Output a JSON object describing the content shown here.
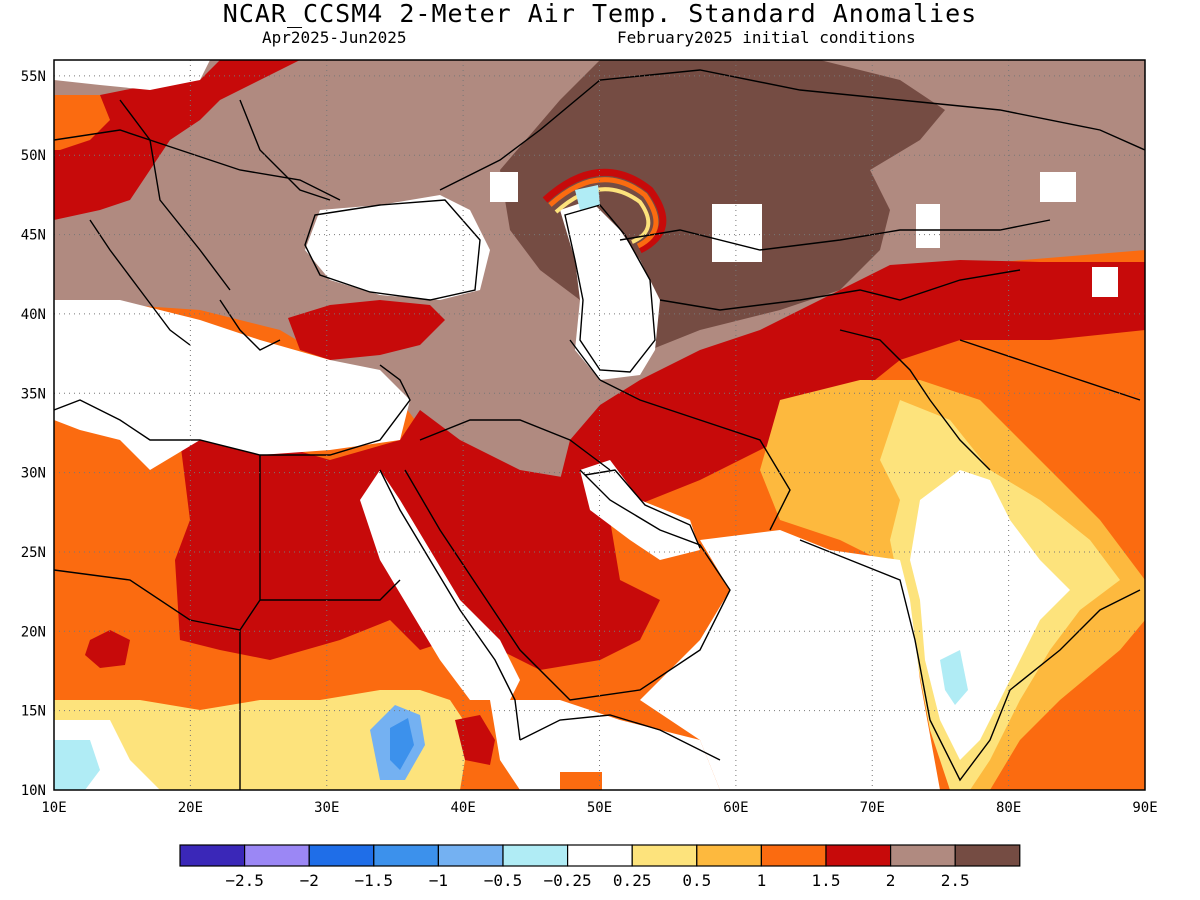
{
  "title": "NCAR_CCSM4 2-Meter Air Temp. Standard Anomalies",
  "subtitle_left": "Apr2025-Jun2025",
  "subtitle_right": "February2025 initial conditions",
  "map": {
    "lon_range": [
      10,
      90
    ],
    "lat_range": [
      10,
      56
    ],
    "lon_ticks": [
      "10E",
      "20E",
      "30E",
      "40E",
      "50E",
      "60E",
      "70E",
      "80E",
      "90E"
    ],
    "lat_ticks": [
      "10N",
      "15N",
      "20N",
      "25N",
      "30N",
      "35N",
      "40N",
      "45N",
      "50N",
      "55N"
    ],
    "grid": "dotted"
  },
  "legend": {
    "colors": [
      "#3a27b8",
      "#9b87f5",
      "#1f6ee8",
      "#3c91ec",
      "#74b1f2",
      "#b0ecf5",
      "#ffffff",
      "#fde37c",
      "#fdb93e",
      "#fb6b10",
      "#c70a0a",
      "#b08a80",
      "#754c43"
    ],
    "labels": [
      "-2.5",
      "-2",
      "-1.5",
      "-1",
      "-0.5",
      "-0.25",
      "0.25",
      "0.5",
      "1",
      "1.5",
      "2",
      "2.5"
    ]
  }
}
